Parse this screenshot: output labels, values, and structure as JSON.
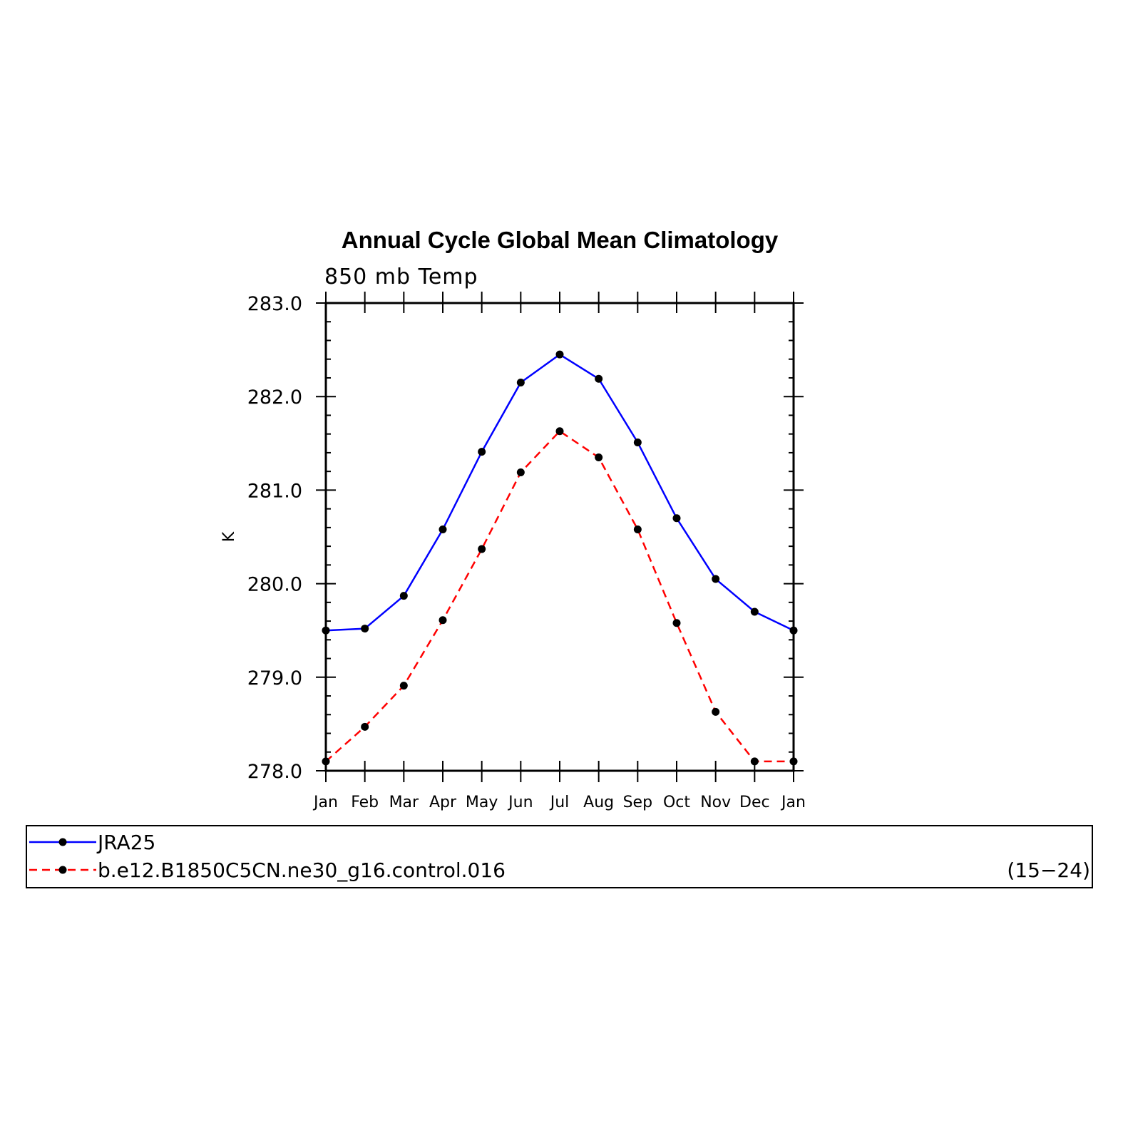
{
  "chart_data": {
    "type": "line",
    "title": "Annual Cycle Global Mean Climatology",
    "subtitle": "850 mb Temp",
    "xlabel": "",
    "ylabel": "K",
    "ylim": [
      278.0,
      283.0
    ],
    "yticks": [
      "278.0",
      "279.0",
      "280.0",
      "281.0",
      "282.0",
      "283.0"
    ],
    "categories": [
      "Jan",
      "Feb",
      "Mar",
      "Apr",
      "May",
      "Jun",
      "Jul",
      "Aug",
      "Sep",
      "Oct",
      "Nov",
      "Dec",
      "Jan"
    ],
    "grid": false,
    "legend_position": "bottom",
    "series": [
      {
        "name": "JRA25",
        "color": "#0000ff",
        "dash": "solid",
        "marker": "circle",
        "values": [
          279.5,
          279.52,
          279.87,
          280.58,
          281.41,
          282.15,
          282.45,
          282.19,
          281.51,
          280.7,
          280.05,
          279.7,
          279.5
        ]
      },
      {
        "name": "b.e12.B1850C5CN.ne30_g16.control.016",
        "color": "#ff0000",
        "dash": "dashed",
        "marker": "circle",
        "values": [
          278.1,
          278.47,
          278.91,
          279.61,
          280.37,
          281.19,
          281.63,
          281.35,
          280.58,
          279.58,
          278.63,
          278.1,
          278.1
        ],
        "years": "(15−24)"
      }
    ]
  }
}
